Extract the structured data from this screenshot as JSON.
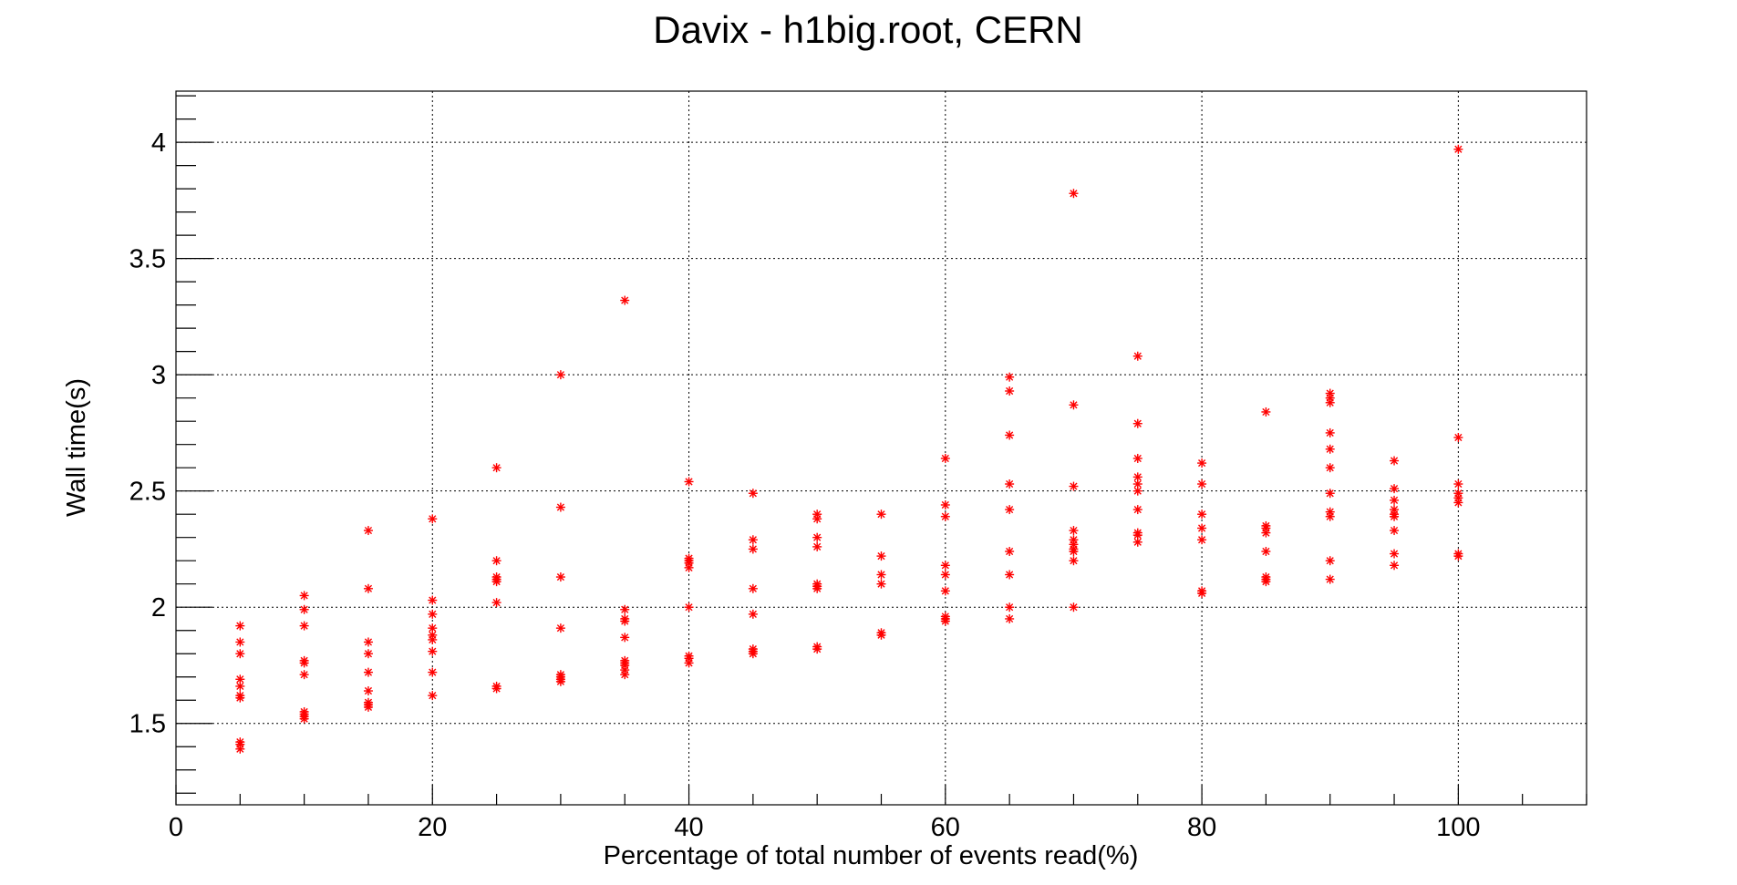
{
  "chart_data": {
    "type": "scatter",
    "title": "Davix - h1big.root, CERN",
    "xlabel": "Percentage of total number of events read(%)",
    "ylabel": "Wall time(s)",
    "xlim": [
      0,
      110
    ],
    "ylim": [
      1.15,
      4.22
    ],
    "x_ticks": [
      0,
      20,
      40,
      60,
      80,
      100
    ],
    "y_ticks": [
      1.5,
      2,
      2.5,
      3,
      3.5,
      4
    ],
    "x_tick_labels": [
      "0",
      "20",
      "40",
      "60",
      "80",
      "100"
    ],
    "y_tick_labels": [
      "1.5",
      "2",
      "2.5",
      "3",
      "3.5",
      "4"
    ],
    "grid": true,
    "marker": "asterisk",
    "color": "#ff0000",
    "points": [
      [
        5,
        1.92
      ],
      [
        5,
        1.85
      ],
      [
        5,
        1.8
      ],
      [
        5,
        1.69
      ],
      [
        5,
        1.66
      ],
      [
        5,
        1.62
      ],
      [
        5,
        1.61
      ],
      [
        5,
        1.42
      ],
      [
        5,
        1.41
      ],
      [
        5,
        1.39
      ],
      [
        10,
        2.05
      ],
      [
        10,
        1.99
      ],
      [
        10,
        1.92
      ],
      [
        10,
        1.77
      ],
      [
        10,
        1.76
      ],
      [
        10,
        1.71
      ],
      [
        10,
        1.55
      ],
      [
        10,
        1.54
      ],
      [
        10,
        1.53
      ],
      [
        10,
        1.52
      ],
      [
        15,
        2.33
      ],
      [
        15,
        2.08
      ],
      [
        15,
        1.85
      ],
      [
        15,
        1.8
      ],
      [
        15,
        1.72
      ],
      [
        15,
        1.64
      ],
      [
        15,
        1.59
      ],
      [
        15,
        1.58
      ],
      [
        15,
        1.57
      ],
      [
        20,
        2.38
      ],
      [
        20,
        2.03
      ],
      [
        20,
        1.97
      ],
      [
        20,
        1.91
      ],
      [
        20,
        1.88
      ],
      [
        20,
        1.86
      ],
      [
        20,
        1.81
      ],
      [
        20,
        1.72
      ],
      [
        20,
        1.62
      ],
      [
        25,
        2.6
      ],
      [
        25,
        2.2
      ],
      [
        25,
        2.13
      ],
      [
        25,
        2.12
      ],
      [
        25,
        2.11
      ],
      [
        25,
        2.02
      ],
      [
        25,
        1.66
      ],
      [
        25,
        1.65
      ],
      [
        30,
        3.0
      ],
      [
        30,
        2.43
      ],
      [
        30,
        2.13
      ],
      [
        30,
        1.91
      ],
      [
        30,
        1.71
      ],
      [
        30,
        1.7
      ],
      [
        30,
        1.69
      ],
      [
        30,
        1.68
      ],
      [
        35,
        3.32
      ],
      [
        35,
        1.99
      ],
      [
        35,
        1.95
      ],
      [
        35,
        1.94
      ],
      [
        35,
        1.87
      ],
      [
        35,
        1.77
      ],
      [
        35,
        1.76
      ],
      [
        35,
        1.75
      ],
      [
        35,
        1.73
      ],
      [
        35,
        1.71
      ],
      [
        40,
        2.54
      ],
      [
        40,
        2.21
      ],
      [
        40,
        2.2
      ],
      [
        40,
        2.19
      ],
      [
        40,
        2.17
      ],
      [
        40,
        2.0
      ],
      [
        40,
        1.79
      ],
      [
        40,
        1.78
      ],
      [
        40,
        1.76
      ],
      [
        45,
        2.49
      ],
      [
        45,
        2.29
      ],
      [
        45,
        2.25
      ],
      [
        45,
        2.08
      ],
      [
        45,
        1.97
      ],
      [
        45,
        1.82
      ],
      [
        45,
        1.81
      ],
      [
        45,
        1.8
      ],
      [
        50,
        2.4
      ],
      [
        50,
        2.38
      ],
      [
        50,
        2.3
      ],
      [
        50,
        2.26
      ],
      [
        50,
        2.1
      ],
      [
        50,
        2.09
      ],
      [
        50,
        2.08
      ],
      [
        50,
        1.83
      ],
      [
        50,
        1.82
      ],
      [
        55,
        2.4
      ],
      [
        55,
        2.22
      ],
      [
        55,
        2.14
      ],
      [
        55,
        2.1
      ],
      [
        55,
        1.89
      ],
      [
        55,
        1.88
      ],
      [
        60,
        2.64
      ],
      [
        60,
        2.44
      ],
      [
        60,
        2.39
      ],
      [
        60,
        2.18
      ],
      [
        60,
        2.14
      ],
      [
        60,
        2.07
      ],
      [
        60,
        1.96
      ],
      [
        60,
        1.95
      ],
      [
        60,
        1.94
      ],
      [
        65,
        2.99
      ],
      [
        65,
        2.93
      ],
      [
        65,
        2.74
      ],
      [
        65,
        2.53
      ],
      [
        65,
        2.42
      ],
      [
        65,
        2.24
      ],
      [
        65,
        2.14
      ],
      [
        65,
        2.0
      ],
      [
        65,
        1.95
      ],
      [
        70,
        3.78
      ],
      [
        70,
        2.87
      ],
      [
        70,
        2.52
      ],
      [
        70,
        2.33
      ],
      [
        70,
        2.29
      ],
      [
        70,
        2.27
      ],
      [
        70,
        2.25
      ],
      [
        70,
        2.24
      ],
      [
        70,
        2.2
      ],
      [
        70,
        2.0
      ],
      [
        75,
        3.08
      ],
      [
        75,
        2.79
      ],
      [
        75,
        2.64
      ],
      [
        75,
        2.56
      ],
      [
        75,
        2.53
      ],
      [
        75,
        2.5
      ],
      [
        75,
        2.42
      ],
      [
        75,
        2.32
      ],
      [
        75,
        2.31
      ],
      [
        75,
        2.28
      ],
      [
        80,
        2.62
      ],
      [
        80,
        2.53
      ],
      [
        80,
        2.4
      ],
      [
        80,
        2.34
      ],
      [
        80,
        2.29
      ],
      [
        80,
        2.07
      ],
      [
        80,
        2.06
      ],
      [
        85,
        2.84
      ],
      [
        85,
        2.35
      ],
      [
        85,
        2.34
      ],
      [
        85,
        2.32
      ],
      [
        85,
        2.24
      ],
      [
        85,
        2.13
      ],
      [
        85,
        2.12
      ],
      [
        85,
        2.11
      ],
      [
        90,
        2.92
      ],
      [
        90,
        2.9
      ],
      [
        90,
        2.88
      ],
      [
        90,
        2.75
      ],
      [
        90,
        2.68
      ],
      [
        90,
        2.6
      ],
      [
        90,
        2.49
      ],
      [
        90,
        2.41
      ],
      [
        90,
        2.39
      ],
      [
        90,
        2.2
      ],
      [
        90,
        2.12
      ],
      [
        95,
        2.63
      ],
      [
        95,
        2.51
      ],
      [
        95,
        2.46
      ],
      [
        95,
        2.42
      ],
      [
        95,
        2.4
      ],
      [
        95,
        2.39
      ],
      [
        95,
        2.33
      ],
      [
        95,
        2.23
      ],
      [
        95,
        2.18
      ],
      [
        100,
        3.97
      ],
      [
        100,
        2.73
      ],
      [
        100,
        2.53
      ],
      [
        100,
        2.49
      ],
      [
        100,
        2.47
      ],
      [
        100,
        2.45
      ],
      [
        100,
        2.23
      ],
      [
        100,
        2.22
      ]
    ]
  }
}
